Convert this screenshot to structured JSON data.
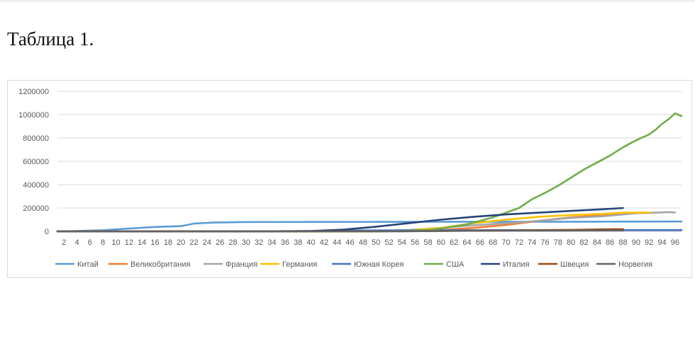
{
  "caption": "Таблица 1.",
  "chart_data": {
    "type": "line",
    "title": "",
    "xlabel": "",
    "ylabel": "",
    "ylim": [
      0,
      1200000
    ],
    "yticks": [
      "1200000",
      "1000000",
      "800000",
      "600000",
      "400000",
      "200000",
      "0"
    ],
    "x_tick_labels": [
      "2",
      "4",
      "6",
      "8",
      "10",
      "12",
      "14",
      "16",
      "18",
      "20",
      "22",
      "24",
      "26",
      "28",
      "30",
      "32",
      "34",
      "36",
      "38",
      "40",
      "42",
      "44",
      "46",
      "48",
      "50",
      "52",
      "54",
      "56",
      "58",
      "60",
      "62",
      "64",
      "66",
      "68",
      "70",
      "72",
      "74",
      "76",
      "78",
      "80",
      "82",
      "84",
      "86",
      "88",
      "90",
      "92",
      "94",
      "96"
    ],
    "xlim": [
      1,
      97
    ],
    "grid": "horizontal",
    "legend": "bottom",
    "series": [
      {
        "name": "Китай",
        "color": "#5b9bd5",
        "points": [
          [
            1,
            550
          ],
          [
            4,
            2800
          ],
          [
            8,
            9700
          ],
          [
            12,
            24300
          ],
          [
            16,
            37500
          ],
          [
            20,
            44700
          ],
          [
            22,
            66500
          ],
          [
            25,
            75000
          ],
          [
            30,
            80100
          ],
          [
            40,
            80900
          ],
          [
            50,
            81400
          ],
          [
            60,
            81700
          ],
          [
            70,
            82300
          ],
          [
            80,
            82700
          ],
          [
            88,
            83900
          ],
          [
            97,
            84000
          ]
        ]
      },
      {
        "name": "Великобритания",
        "color": "#ed7d31",
        "points": [
          [
            1,
            0
          ],
          [
            40,
            0
          ],
          [
            44,
            30
          ],
          [
            50,
            1500
          ],
          [
            55,
            5000
          ],
          [
            60,
            10000
          ],
          [
            65,
            30000
          ],
          [
            70,
            55000
          ],
          [
            75,
            90000
          ],
          [
            80,
            120000
          ],
          [
            85,
            140000
          ],
          [
            88,
            155000
          ]
        ]
      },
      {
        "name": "Франция",
        "color": "#a5a5a5",
        "points": [
          [
            1,
            0
          ],
          [
            35,
            12
          ],
          [
            45,
            200
          ],
          [
            50,
            2000
          ],
          [
            55,
            12000
          ],
          [
            60,
            29000
          ],
          [
            65,
            52000
          ],
          [
            70,
            70000
          ],
          [
            75,
            90000
          ],
          [
            80,
            115000
          ],
          [
            85,
            130000
          ],
          [
            90,
            155000
          ],
          [
            93,
            160000
          ],
          [
            95,
            165000
          ],
          [
            96,
            162000
          ]
        ]
      },
      {
        "name": "Германия",
        "color": "#ffc000",
        "points": [
          [
            1,
            0
          ],
          [
            35,
            16
          ],
          [
            45,
            200
          ],
          [
            50,
            1500
          ],
          [
            55,
            8000
          ],
          [
            60,
            29000
          ],
          [
            65,
            70000
          ],
          [
            70,
            100000
          ],
          [
            75,
            125000
          ],
          [
            80,
            140000
          ],
          [
            85,
            150000
          ],
          [
            88,
            160000
          ],
          [
            92,
            162000
          ]
        ]
      },
      {
        "name": "Южная Корея",
        "color": "#4472c4",
        "points": [
          [
            1,
            0
          ],
          [
            30,
            30
          ],
          [
            40,
            3500
          ],
          [
            45,
            6500
          ],
          [
            50,
            8000
          ],
          [
            55,
            9000
          ],
          [
            60,
            9800
          ],
          [
            70,
            10400
          ],
          [
            80,
            10700
          ],
          [
            90,
            10800
          ],
          [
            97,
            10900
          ]
        ]
      },
      {
        "name": "США",
        "color": "#70ad47",
        "points": [
          [
            1,
            0
          ],
          [
            50,
            100
          ],
          [
            55,
            3000
          ],
          [
            58,
            10000
          ],
          [
            60,
            25000
          ],
          [
            64,
            60000
          ],
          [
            68,
            120000
          ],
          [
            72,
            200000
          ],
          [
            74,
            275000
          ],
          [
            76,
            330000
          ],
          [
            78,
            390000
          ],
          [
            80,
            460000
          ],
          [
            82,
            530000
          ],
          [
            84,
            590000
          ],
          [
            86,
            650000
          ],
          [
            88,
            720000
          ],
          [
            90,
            780000
          ],
          [
            92,
            830000
          ],
          [
            93,
            870000
          ],
          [
            94,
            920000
          ],
          [
            95,
            960000
          ],
          [
            96,
            1010000
          ],
          [
            97,
            988000
          ]
        ]
      },
      {
        "name": "Италия",
        "color": "#264478",
        "points": [
          [
            1,
            0
          ],
          [
            30,
            3
          ],
          [
            35,
            200
          ],
          [
            40,
            3000
          ],
          [
            45,
            15000
          ],
          [
            50,
            40000
          ],
          [
            55,
            70000
          ],
          [
            60,
            100000
          ],
          [
            65,
            125000
          ],
          [
            70,
            145000
          ],
          [
            75,
            160000
          ],
          [
            80,
            175000
          ],
          [
            85,
            190000
          ],
          [
            88,
            200000
          ]
        ]
      },
      {
        "name": "Швеция",
        "color": "#9e480e",
        "points": [
          [
            1,
            0
          ],
          [
            40,
            0
          ],
          [
            50,
            500
          ],
          [
            55,
            1300
          ],
          [
            60,
            3000
          ],
          [
            65,
            5500
          ],
          [
            70,
            7500
          ],
          [
            75,
            10000
          ],
          [
            80,
            13000
          ],
          [
            85,
            17000
          ],
          [
            87,
            19000
          ],
          [
            88,
            18500
          ]
        ]
      },
      {
        "name": "Норвегия",
        "color": "#636363",
        "points": [
          [
            1,
            0
          ],
          [
            40,
            0
          ],
          [
            50,
            500
          ],
          [
            55,
            1500
          ],
          [
            60,
            3500
          ],
          [
            65,
            5000
          ],
          [
            70,
            6000
          ],
          [
            75,
            6800
          ],
          [
            80,
            7200
          ],
          [
            85,
            7600
          ],
          [
            88,
            7700
          ]
        ]
      }
    ]
  }
}
